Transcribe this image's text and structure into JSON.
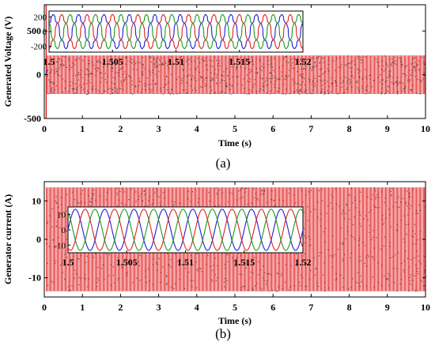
{
  "colors": {
    "envelope": "#f08080",
    "stripe": "#e85a5a",
    "phase_a": "#1e1ed8",
    "phase_b": "#e02020",
    "phase_c": "#1a9a1a",
    "axis": "#000000",
    "dots": "#222222"
  },
  "chart_data": [
    {
      "type": "line",
      "caption": "(a)",
      "xlabel": "Time (s)",
      "ylabel": "Generated Voltage (V)",
      "xlim": [
        0,
        10
      ],
      "ylim": [
        -500,
        800
      ],
      "xticks": [
        0,
        1,
        2,
        3,
        4,
        5,
        6,
        7,
        8,
        9,
        10
      ],
      "xtick_labels": [
        "0",
        "1",
        "2",
        "3",
        "4",
        "5",
        "6",
        "7",
        "8",
        "9",
        "10"
      ],
      "yticks": [
        -500,
        0,
        500
      ],
      "ytick_labels": [
        "-500",
        "0",
        "500"
      ],
      "grid": false,
      "series": [
        {
          "amplitude_upper": 220,
          "amplitude_lower": -220,
          "startup_spike": [
            -500,
            800
          ],
          "startup_time": 0.05,
          "color_key": "envelope"
        }
      ],
      "inset": {
        "type": "line",
        "xlim": [
          1.5,
          1.52
        ],
        "ylim": [
          -280,
          280
        ],
        "xticks": [
          1.5,
          1.505,
          1.51,
          1.515,
          1.52
        ],
        "xtick_labels": [
          "1.5",
          "1.505",
          "1.51",
          "1.515",
          "1.52"
        ],
        "yticks": [
          200,
          0,
          -200
        ],
        "ytick_labels": [
          "200",
          "0",
          "-200"
        ],
        "waveform": "six-step",
        "amplitude": 230,
        "cycles": 10,
        "phases": [
          {
            "color_key": "phase_a",
            "shift_deg": 0
          },
          {
            "color_key": "phase_b",
            "shift_deg": 120
          },
          {
            "color_key": "phase_c",
            "shift_deg": 240
          }
        ]
      }
    },
    {
      "type": "line",
      "caption": "(b)",
      "xlabel": "Time (s)",
      "ylabel": "Generator current (A)",
      "xlim": [
        0,
        10
      ],
      "ylim": [
        -15,
        15
      ],
      "xticks": [
        0,
        1,
        2,
        3,
        4,
        5,
        6,
        7,
        8,
        9,
        10
      ],
      "xtick_labels": [
        "0",
        "1",
        "2",
        "3",
        "4",
        "5",
        "6",
        "7",
        "8",
        "9",
        "10"
      ],
      "yticks": [
        10,
        0,
        -10
      ],
      "ytick_labels": [
        "10",
        "0",
        "-10"
      ],
      "grid": false,
      "series": [
        {
          "amplitude_upper": 13.5,
          "amplitude_lower": -13.5,
          "color_key": "envelope"
        }
      ],
      "inset": {
        "type": "line",
        "xlim": [
          1.5,
          1.52
        ],
        "ylim": [
          -15,
          15
        ],
        "xticks": [
          1.5,
          1.505,
          1.51,
          1.515,
          1.52
        ],
        "xtick_labels": [
          "1.5",
          "1.505",
          "1.51",
          "1.515",
          "1.52"
        ],
        "yticks": [
          10,
          0,
          -10
        ],
        "ytick_labels": [
          "10",
          "0",
          "-10"
        ],
        "waveform": "sine",
        "amplitude": 13.5,
        "cycles": 8,
        "phases": [
          {
            "color_key": "phase_a",
            "shift_deg": 0
          },
          {
            "color_key": "phase_b",
            "shift_deg": 120
          },
          {
            "color_key": "phase_c",
            "shift_deg": 240
          }
        ]
      }
    }
  ]
}
